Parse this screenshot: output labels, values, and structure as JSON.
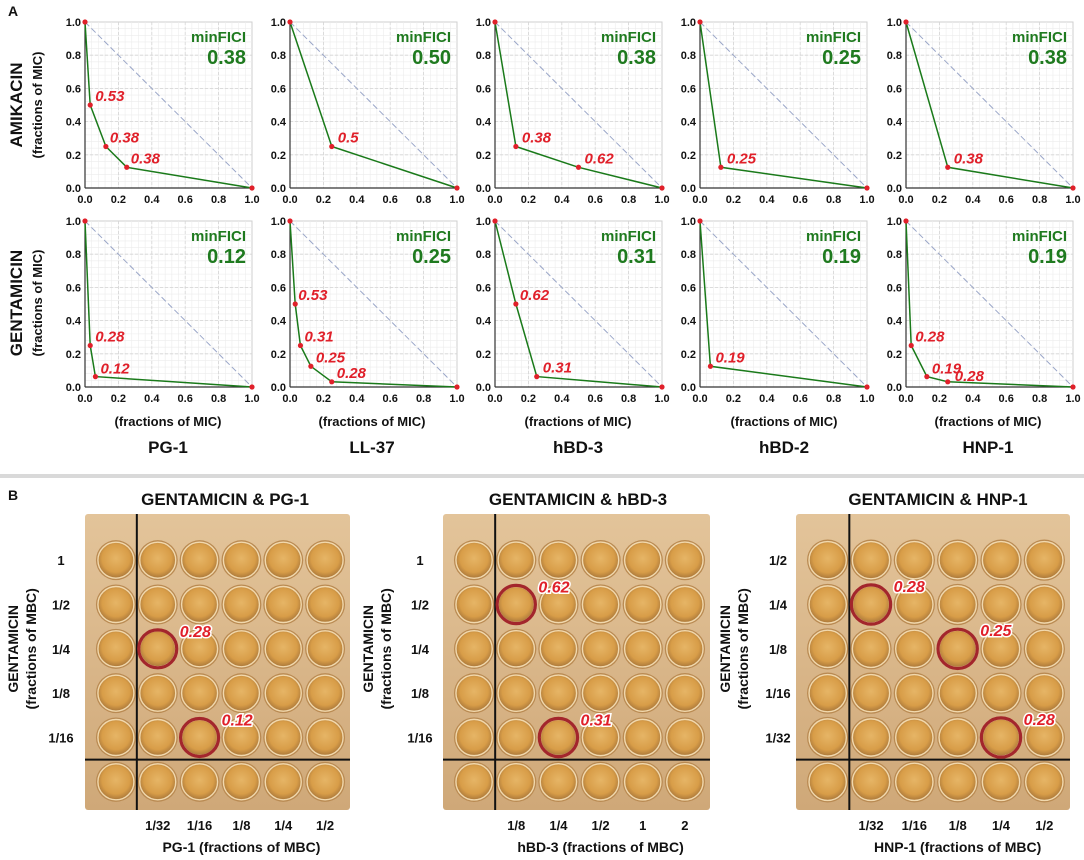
{
  "panel_a_label": "A",
  "panel_b_label": "B",
  "row_labels": [
    {
      "drug": "AMIKACIN",
      "sub": "(fractions of MIC)"
    },
    {
      "drug": "GENTAMICIN",
      "sub": "(fractions of MIC)"
    }
  ],
  "x_axis_label": "(fractions of MIC)",
  "column_labels": [
    "PG-1",
    "LL-37",
    "hBD-3",
    "hBD-2",
    "HNP-1"
  ],
  "fici_title": "minFICI",
  "tick_labels": [
    "0.0",
    "0.2",
    "0.4",
    "0.6",
    "0.8",
    "1.0"
  ],
  "colors": {
    "curve": "#1a7a1a",
    "points": "#e0202a",
    "diagonal": "#9aa6c8",
    "fici_text": "#1f7a1f",
    "label_red": "#e0202a"
  },
  "chart_data": [
    {
      "type": "line",
      "row": "AMIKACIN",
      "column": "PG-1",
      "min_fici": "0.38",
      "x": [
        0,
        0.03125,
        0.125,
        0.25,
        1
      ],
      "y": [
        1,
        0.5,
        0.25,
        0.125,
        0
      ],
      "xlim": [
        0,
        1
      ],
      "ylim": [
        0,
        1
      ],
      "xlabel": "(fractions of MIC)",
      "ylabel": "(fractions of MIC)",
      "annotations": [
        {
          "x": 0.03125,
          "y": 0.5,
          "text": "0.53"
        },
        {
          "x": 0.125,
          "y": 0.25,
          "text": "0.38"
        },
        {
          "x": 0.25,
          "y": 0.125,
          "text": "0.38"
        }
      ]
    },
    {
      "type": "line",
      "row": "AMIKACIN",
      "column": "LL-37",
      "min_fici": "0.50",
      "x": [
        0,
        0.25,
        1
      ],
      "y": [
        1,
        0.25,
        0
      ],
      "xlim": [
        0,
        1
      ],
      "ylim": [
        0,
        1
      ],
      "xlabel": "(fractions of MIC)",
      "ylabel": "(fractions of MIC)",
      "annotations": [
        {
          "x": 0.25,
          "y": 0.25,
          "text": "0.5"
        }
      ]
    },
    {
      "type": "line",
      "row": "AMIKACIN",
      "column": "hBD-3",
      "min_fici": "0.38",
      "x": [
        0,
        0.125,
        0.5,
        1
      ],
      "y": [
        1,
        0.25,
        0.125,
        0
      ],
      "xlim": [
        0,
        1
      ],
      "ylim": [
        0,
        1
      ],
      "xlabel": "(fractions of MIC)",
      "ylabel": "(fractions of MIC)",
      "annotations": [
        {
          "x": 0.125,
          "y": 0.25,
          "text": "0.38"
        },
        {
          "x": 0.5,
          "y": 0.125,
          "text": "0.62"
        }
      ]
    },
    {
      "type": "line",
      "row": "AMIKACIN",
      "column": "hBD-2",
      "min_fici": "0.25",
      "x": [
        0,
        0.125,
        1
      ],
      "y": [
        1,
        0.125,
        0
      ],
      "xlim": [
        0,
        1
      ],
      "ylim": [
        0,
        1
      ],
      "xlabel": "(fractions of MIC)",
      "ylabel": "(fractions of MIC)",
      "annotations": [
        {
          "x": 0.125,
          "y": 0.125,
          "text": "0.25"
        }
      ]
    },
    {
      "type": "line",
      "row": "AMIKACIN",
      "column": "HNP-1",
      "min_fici": "0.38",
      "x": [
        0,
        0.25,
        1
      ],
      "y": [
        1,
        0.125,
        0
      ],
      "xlim": [
        0,
        1
      ],
      "ylim": [
        0,
        1
      ],
      "xlabel": "(fractions of MIC)",
      "ylabel": "(fractions of MIC)",
      "annotations": [
        {
          "x": 0.25,
          "y": 0.125,
          "text": "0.38"
        }
      ]
    },
    {
      "type": "line",
      "row": "GENTAMICIN",
      "column": "PG-1",
      "min_fici": "0.12",
      "x": [
        0,
        0.03125,
        0.0625,
        1
      ],
      "y": [
        1,
        0.25,
        0.0625,
        0
      ],
      "xlim": [
        0,
        1
      ],
      "ylim": [
        0,
        1
      ],
      "xlabel": "(fractions of MIC)",
      "ylabel": "(fractions of MIC)",
      "annotations": [
        {
          "x": 0.03125,
          "y": 0.25,
          "text": "0.28"
        },
        {
          "x": 0.0625,
          "y": 0.0625,
          "text": "0.12"
        }
      ]
    },
    {
      "type": "line",
      "row": "GENTAMICIN",
      "column": "LL-37",
      "min_fici": "0.25",
      "x": [
        0,
        0.03125,
        0.0625,
        0.125,
        0.25,
        1
      ],
      "y": [
        1,
        0.5,
        0.25,
        0.125,
        0.03125,
        0
      ],
      "xlim": [
        0,
        1
      ],
      "ylim": [
        0,
        1
      ],
      "xlabel": "(fractions of MIC)",
      "ylabel": "(fractions of MIC)",
      "annotations": [
        {
          "x": 0.03125,
          "y": 0.5,
          "text": "0.53"
        },
        {
          "x": 0.0625,
          "y": 0.25,
          "text": "0.31"
        },
        {
          "x": 0.125,
          "y": 0.125,
          "text": "0.25"
        },
        {
          "x": 0.25,
          "y": 0.03125,
          "text": "0.28"
        }
      ]
    },
    {
      "type": "line",
      "row": "GENTAMICIN",
      "column": "hBD-3",
      "min_fici": "0.31",
      "x": [
        0,
        0.125,
        0.25,
        1
      ],
      "y": [
        1,
        0.5,
        0.0625,
        0
      ],
      "xlim": [
        0,
        1
      ],
      "ylim": [
        0,
        1
      ],
      "xlabel": "(fractions of MIC)",
      "ylabel": "(fractions of MIC)",
      "annotations": [
        {
          "x": 0.125,
          "y": 0.5,
          "text": "0.62"
        },
        {
          "x": 0.25,
          "y": 0.0625,
          "text": "0.31"
        }
      ]
    },
    {
      "type": "line",
      "row": "GENTAMICIN",
      "column": "hBD-2",
      "min_fici": "0.19",
      "x": [
        0,
        0.0625,
        1
      ],
      "y": [
        1,
        0.125,
        0
      ],
      "xlim": [
        0,
        1
      ],
      "ylim": [
        0,
        1
      ],
      "xlabel": "(fractions of MIC)",
      "ylabel": "(fractions of MIC)",
      "annotations": [
        {
          "x": 0.0625,
          "y": 0.125,
          "text": "0.19"
        }
      ]
    },
    {
      "type": "line",
      "row": "GENTAMICIN",
      "column": "HNP-1",
      "min_fici": "0.19",
      "x": [
        0,
        0.03125,
        0.125,
        0.25,
        1
      ],
      "y": [
        1,
        0.25,
        0.0625,
        0.03125,
        0
      ],
      "xlim": [
        0,
        1
      ],
      "ylim": [
        0,
        1
      ],
      "xlabel": "(fractions of MIC)",
      "ylabel": "(fractions of MIC)",
      "annotations": [
        {
          "x": 0.03125,
          "y": 0.25,
          "text": "0.28"
        },
        {
          "x": 0.125,
          "y": 0.0625,
          "text": "0.19"
        },
        {
          "x": 0.25,
          "y": 0.03125,
          "text": "0.28"
        }
      ]
    }
  ],
  "plates": [
    {
      "title": "GENTAMICIN & PG-1",
      "y_label": {
        "drug": "GENTAMICIN",
        "sub": "(fractions of MBC)"
      },
      "row_ticks": [
        "1",
        "1/2",
        "1/4",
        "1/8",
        "1/16"
      ],
      "col_ticks": [
        "1/32",
        "1/16",
        "1/8",
        "1/4",
        "1/2"
      ],
      "x_label": "PG-1 (fractions of MBC)",
      "highlights": [
        {
          "col": 0,
          "row": 2,
          "text": "0.28"
        },
        {
          "col": 1,
          "row": 4,
          "text": "0.12"
        }
      ]
    },
    {
      "title": "GENTAMICIN & hBD-3",
      "y_label": {
        "drug": "GENTAMICIN",
        "sub": "(fractions of MBC)"
      },
      "row_ticks": [
        "1",
        "1/2",
        "1/4",
        "1/8",
        "1/16"
      ],
      "col_ticks": [
        "1/8",
        "1/4",
        "1/2",
        "1",
        "2"
      ],
      "x_label": "hBD-3 (fractions of MBC)",
      "highlights": [
        {
          "col": 0,
          "row": 1,
          "text": "0.62"
        },
        {
          "col": 1,
          "row": 4,
          "text": "0.31"
        }
      ]
    },
    {
      "title": "GENTAMICIN & HNP-1",
      "y_label": {
        "drug": "GENTAMICIN",
        "sub": "(fractions of MBC)"
      },
      "row_ticks": [
        "1/2",
        "1/4",
        "1/8",
        "1/16",
        "1/32"
      ],
      "col_ticks": [
        "1/32",
        "1/16",
        "1/8",
        "1/4",
        "1/2"
      ],
      "x_label": "HNP-1 (fractions of MBC)",
      "highlights": [
        {
          "col": 0,
          "row": 1,
          "text": "0.28"
        },
        {
          "col": 2,
          "row": 2,
          "text": "0.25"
        },
        {
          "col": 3,
          "row": 4,
          "text": "0.28"
        }
      ]
    }
  ]
}
